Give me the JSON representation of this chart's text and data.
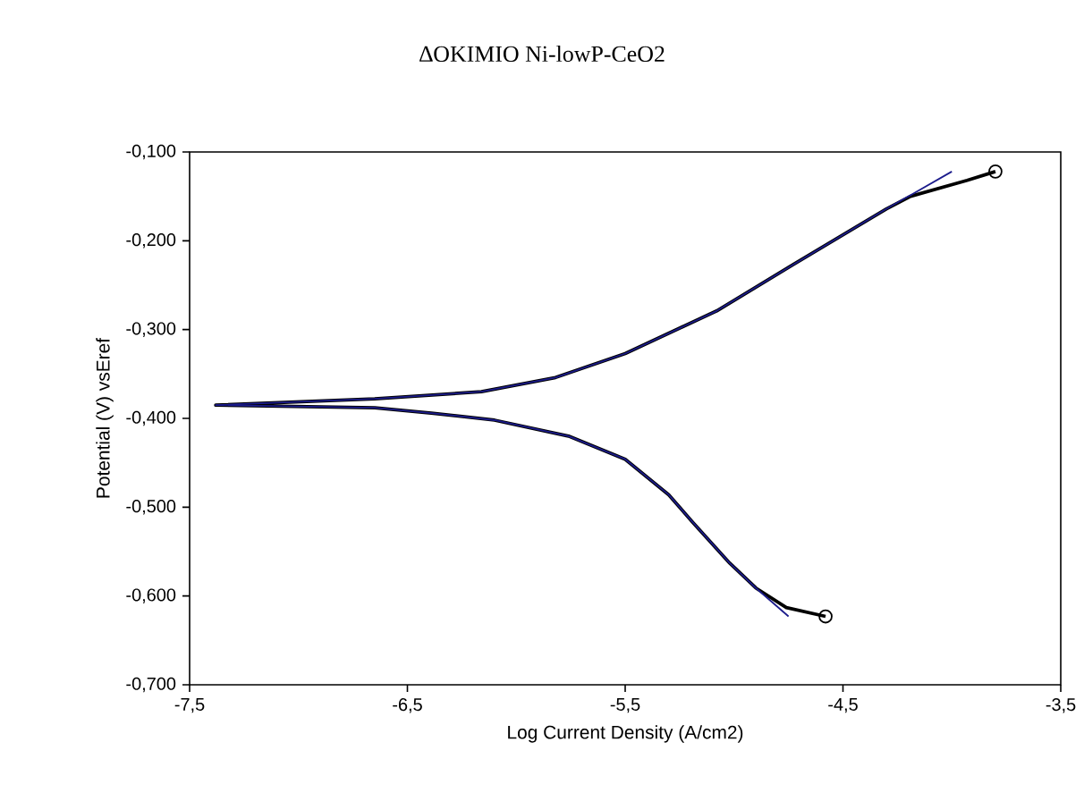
{
  "chart_data": {
    "type": "line",
    "title": "ΔΟΚΙΜΙΟ Ni-lowP-CeO2",
    "xlabel": "Log Current Density (A/cm2)",
    "ylabel": "Potential (V) vsEref",
    "xlim": [
      -7.5,
      -3.5
    ],
    "ylim": [
      -0.7,
      -0.1
    ],
    "xticks": [
      {
        "value": -7.5,
        "label": "-7,5"
      },
      {
        "value": -6.5,
        "label": "-6,5"
      },
      {
        "value": -5.5,
        "label": "-5,5"
      },
      {
        "value": -4.5,
        "label": "-4,5"
      },
      {
        "value": -3.5,
        "label": "-3,5"
      }
    ],
    "yticks": [
      {
        "value": -0.7,
        "label": "-0,700"
      },
      {
        "value": -0.6,
        "label": "-0,600"
      },
      {
        "value": -0.5,
        "label": "-0,500"
      },
      {
        "value": -0.4,
        "label": "-0,400"
      },
      {
        "value": -0.3,
        "label": "-0,300"
      },
      {
        "value": -0.2,
        "label": "-0,200"
      },
      {
        "value": -0.1,
        "label": "-0,100"
      }
    ],
    "series": [
      {
        "color": "#000000",
        "marker": "none",
        "x": [
          -4.58,
          -4.76,
          -4.9,
          -5.02,
          -5.19,
          -5.3,
          -5.5,
          -5.76,
          -6.1,
          -6.39,
          -6.65,
          -7.38,
          -6.65,
          -6.16,
          -5.82,
          -5.5,
          -5.08,
          -4.73,
          -4.3,
          -4.19,
          -3.93,
          -3.8
        ],
        "values": [
          -0.623,
          -0.613,
          -0.591,
          -0.563,
          -0.517,
          -0.486,
          -0.446,
          -0.42,
          -0.402,
          -0.394,
          -0.388,
          -0.385,
          -0.378,
          -0.37,
          -0.354,
          -0.327,
          -0.279,
          -0.227,
          -0.164,
          -0.15,
          -0.132,
          -0.122
        ]
      },
      {
        "color": "#1c1c8c",
        "marker": "none",
        "x": [
          -4.75,
          -4.9,
          -5.02,
          -5.19,
          -5.3,
          -5.5,
          -5.76,
          -6.1,
          -6.39,
          -6.65,
          -7.38,
          -6.65,
          -6.16,
          -5.82,
          -5.5,
          -5.08,
          -4.73,
          -4.3,
          -4.0
        ],
        "values": [
          -0.623,
          -0.591,
          -0.563,
          -0.517,
          -0.486,
          -0.446,
          -0.42,
          -0.402,
          -0.394,
          -0.388,
          -0.385,
          -0.378,
          -0.37,
          -0.354,
          -0.327,
          -0.279,
          -0.227,
          -0.164,
          -0.122
        ]
      },
      {
        "type": "scatter",
        "color": "#000000",
        "marker": "circle",
        "x": [
          -4.58,
          -3.8
        ],
        "values": [
          -0.623,
          -0.122
        ]
      }
    ]
  }
}
